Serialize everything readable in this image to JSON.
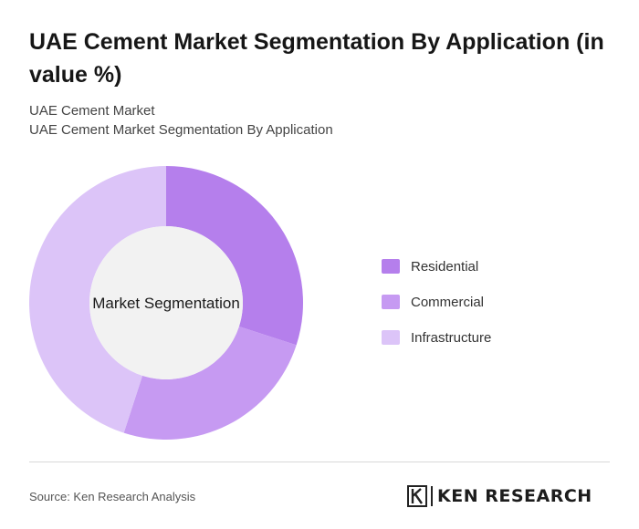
{
  "title": "UAE Cement Market Segmentation By Application (in value %)",
  "subtitle_1": "UAE Cement Market",
  "subtitle_2": "UAE Cement Market Segmentation By Application",
  "source": "Source: Ken Research Analysis",
  "logo_text": "KEN RESEARCH",
  "chart_data": {
    "type": "pie",
    "variant": "donut",
    "center_label": "Market Segmentation",
    "categories": [
      "Residential",
      "Commercial",
      "Infrastructure"
    ],
    "values": [
      30,
      25,
      45
    ],
    "unit": "%",
    "colors": [
      "#b57fec",
      "#c69af2",
      "#dcc4f8"
    ],
    "center_color": "#f2f2f2",
    "legend_position": "right"
  }
}
